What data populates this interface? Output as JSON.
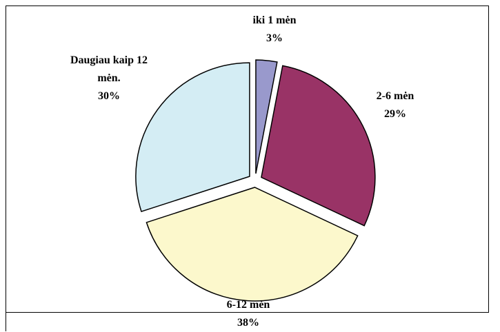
{
  "chart_data": {
    "type": "pie",
    "categories": [
      "iki 1 mėn",
      "2-6 mėn",
      "6-12 mėn",
      "Daugiau kaip 12 mėn."
    ],
    "values": [
      3,
      29,
      38,
      30
    ],
    "value_labels": [
      "3%",
      "29%",
      "38%",
      "30%"
    ],
    "colors": [
      "#9999cc",
      "#993366",
      "#fcf8cc",
      "#d4edf4"
    ]
  }
}
